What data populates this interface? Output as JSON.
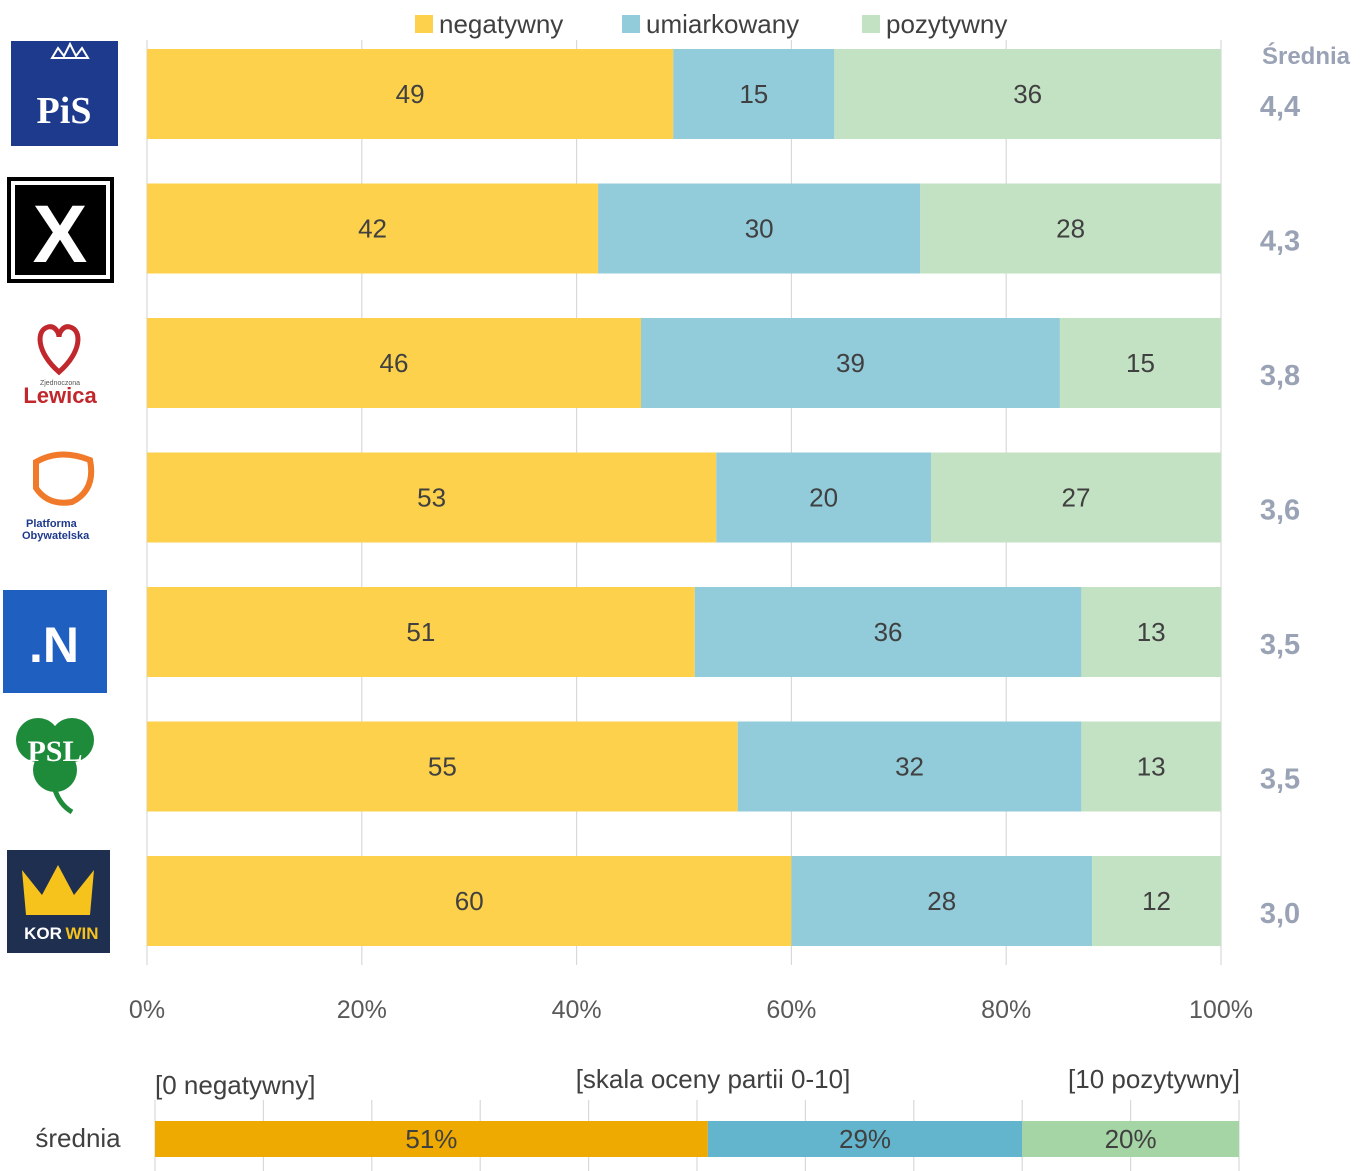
{
  "chart_data": {
    "type": "bar",
    "orientation": "horizontal",
    "stacked": true,
    "percent": true,
    "legend_position": "top",
    "grid": true,
    "xlim": [
      0,
      100
    ],
    "x_ticks": [
      "0%",
      "20%",
      "40%",
      "60%",
      "80%",
      "100%"
    ],
    "categories": [
      "PiS",
      "Kukiz'15",
      "Zjednoczona Lewica",
      "Platforma Obywatelska",
      "Nowoczesna",
      "PSL",
      "KORWIN"
    ],
    "series": [
      {
        "name": "negatywny",
        "color": "#FDD14B",
        "values": [
          49,
          42,
          46,
          53,
          51,
          55,
          60
        ]
      },
      {
        "name": "umiarkowany",
        "color": "#92CBDA",
        "values": [
          15,
          30,
          39,
          20,
          36,
          32,
          28
        ]
      },
      {
        "name": "pozytywny",
        "color": "#C3E1C3",
        "values": [
          36,
          28,
          15,
          27,
          13,
          13,
          12
        ]
      }
    ],
    "average_header": "Średnia",
    "averages": [
      "4,4",
      "4,3",
      "3,8",
      "3,6",
      "3,5",
      "3,5",
      "3,0"
    ],
    "summary": {
      "label": "średnia",
      "scale_left": "[0 negatywny]",
      "scale_center": "[skala oceny partii 0-10]",
      "scale_right": "[10 pozytywny]",
      "segments": [
        {
          "value": 51,
          "label": "51%",
          "color": "#EEAA00"
        },
        {
          "value": 29,
          "label": "29%",
          "color": "#62B5CC"
        },
        {
          "value": 20,
          "label": "20%",
          "color": "#A5D4A5"
        }
      ]
    }
  },
  "logos": {
    "pis": "PiS",
    "x_mark": "X",
    "lewica_small": "Zjednoczona",
    "lewica": "Lewica",
    "po_line1": "Platforma",
    "po_line2": "Obywatelska",
    "nowoczesna": ".N",
    "psl": "PSL",
    "korwin_a": "KOR",
    "korwin_b": "WIN"
  }
}
